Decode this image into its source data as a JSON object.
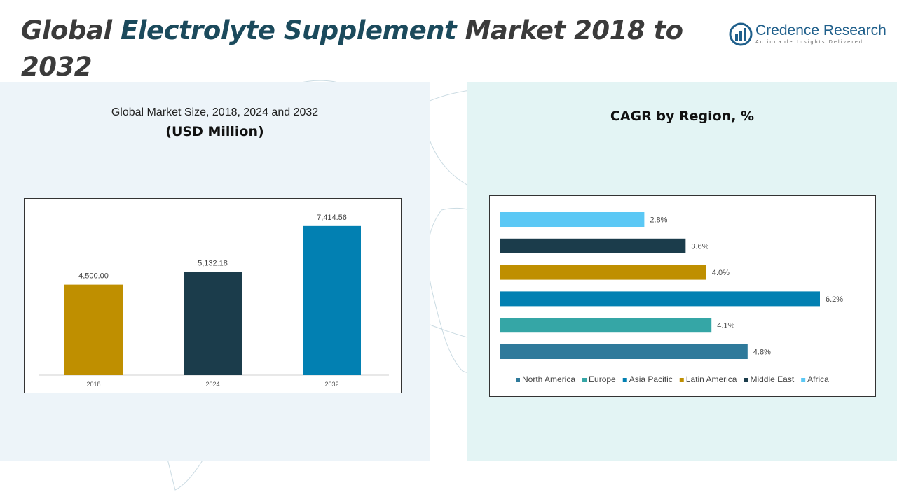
{
  "header": {
    "title_part1": "Global ",
    "title_highlight": "Electrolyte Supplement",
    "title_part2": " Market 2018 to 2032"
  },
  "logo": {
    "name": "Credence Research",
    "tagline": "Actionable Insights Delivered",
    "icon": "bar-chart-logo-icon",
    "color": "#1f5f8b"
  },
  "left_panel": {
    "subtitle": "Global Market Size, 2018, 2024 and 2032",
    "unit": "(USD Million)"
  },
  "right_panel": {
    "title": "CAGR by Region, %"
  },
  "chart_data": [
    {
      "type": "bar",
      "categories": [
        "2018",
        "2024",
        "2032"
      ],
      "values": [
        4500.0,
        5132.18,
        7414.56
      ],
      "data_labels": [
        "4,500.00",
        "5,132.18",
        "7,414.56"
      ],
      "colors": [
        "#bf8f00",
        "#1b3c4b",
        "#0280b2"
      ],
      "title": "Global Market Size, 2018, 2024 and 2032",
      "ylabel": "(USD Million)",
      "ylim": [
        0,
        8000
      ],
      "grid": false,
      "legend": "none"
    },
    {
      "type": "bar",
      "orientation": "horizontal",
      "categories": [
        "Africa",
        "Middle East",
        "Latin America",
        "Asia Pacific",
        "Europe",
        "North America"
      ],
      "values": [
        2.8,
        3.6,
        4.0,
        6.2,
        4.1,
        4.8
      ],
      "data_labels": [
        "2.8%",
        "3.6%",
        "4.0%",
        "6.2%",
        "4.1%",
        "4.8%"
      ],
      "colors": [
        "#5bc8f5",
        "#1b3c4b",
        "#bf8f00",
        "#0280b2",
        "#35a6a6",
        "#2f7a9b"
      ],
      "legend_order": [
        "North America",
        "Europe",
        "Asia Pacific",
        "Latin America",
        "Middle East",
        "Africa"
      ],
      "title": "CAGR by Region, %",
      "xlim": [
        0,
        6.2
      ],
      "grid": false,
      "legend": "bottom"
    }
  ]
}
